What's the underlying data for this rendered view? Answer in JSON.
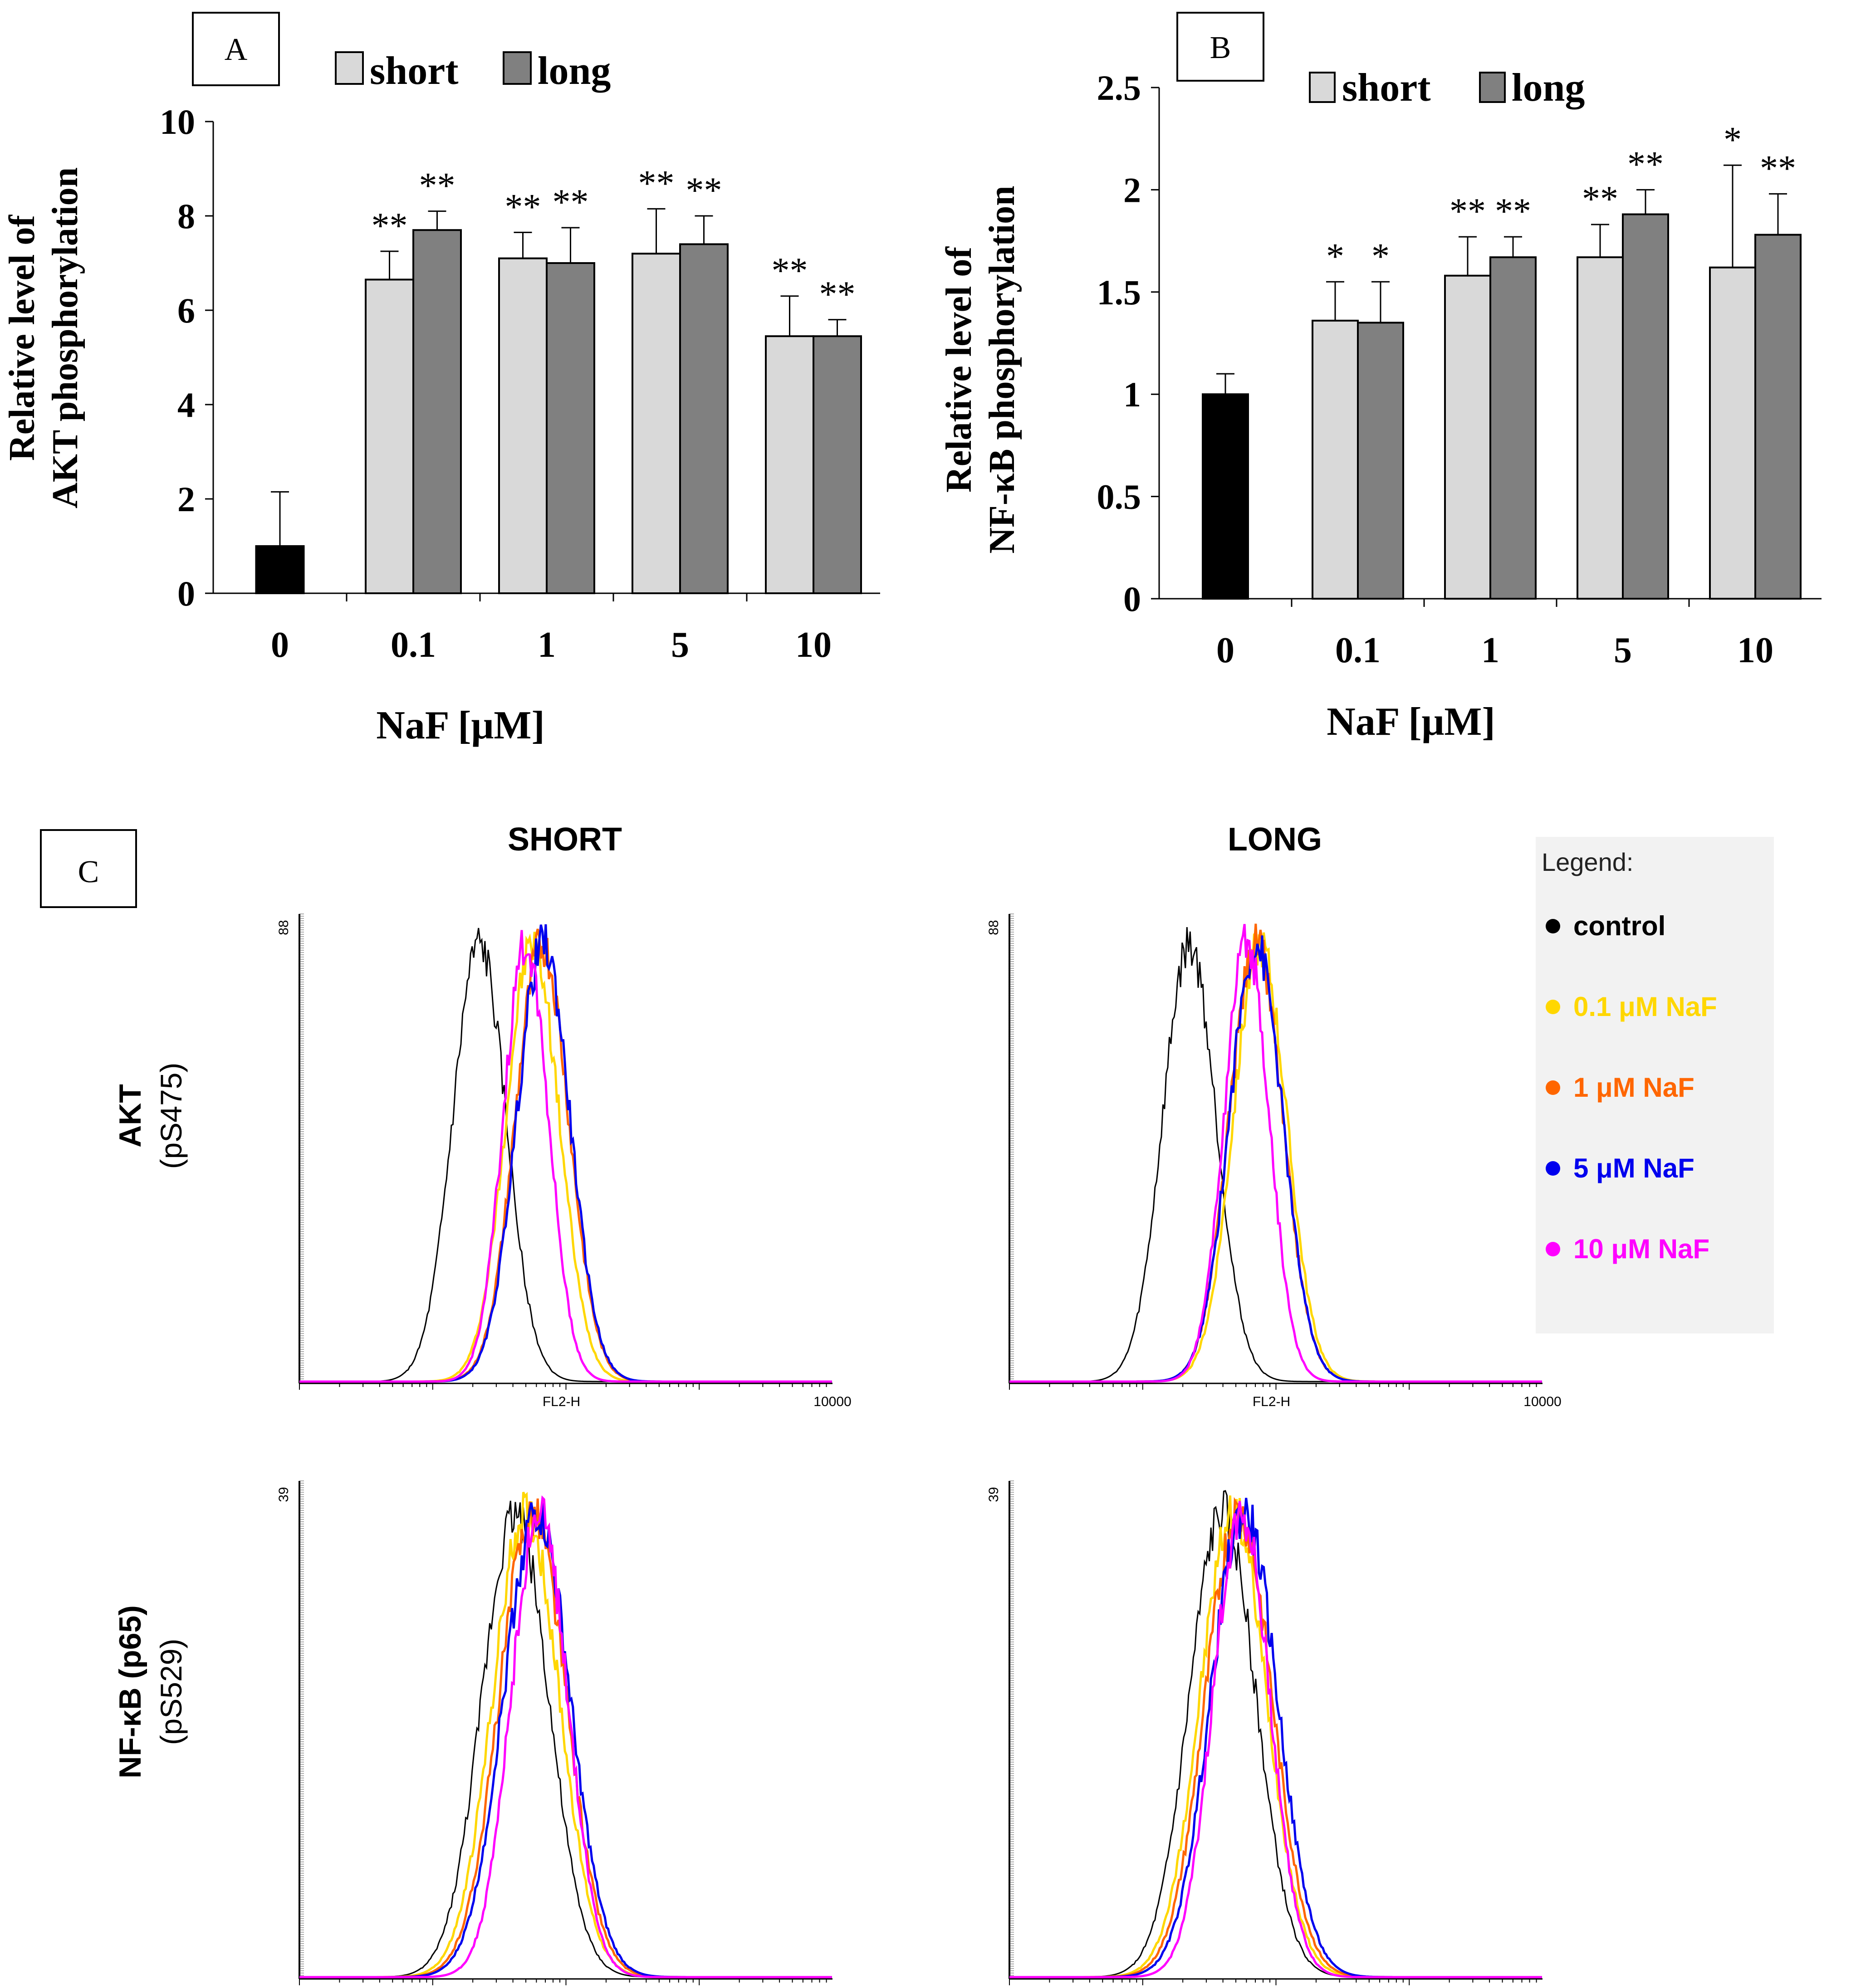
{
  "figure": {
    "panel_labels": {
      "a": "A",
      "b": "B",
      "c": "C"
    }
  },
  "chart_data": [
    {
      "id": "A",
      "type": "bar",
      "categories": [
        "0",
        "0.1",
        "1",
        "5",
        "10"
      ],
      "series": [
        {
          "name": "control",
          "values": [
            1.0,
            null,
            null,
            null,
            null
          ],
          "errors": [
            1.15,
            null,
            null,
            null,
            null
          ],
          "color": "#000000"
        },
        {
          "name": "short",
          "values": [
            null,
            6.65,
            7.1,
            7.2,
            5.45
          ],
          "errors": [
            null,
            0.6,
            0.55,
            0.95,
            0.85
          ],
          "sig": [
            "",
            "**",
            "**",
            "**",
            "**"
          ],
          "color": "#d9d9d9"
        },
        {
          "name": "long",
          "values": [
            null,
            7.7,
            7.0,
            7.4,
            5.45
          ],
          "errors": [
            null,
            0.4,
            0.75,
            0.6,
            0.35
          ],
          "sig": [
            "",
            "**",
            "**",
            "**",
            "**"
          ],
          "color": "#808080"
        }
      ],
      "legend": [
        "short",
        "long"
      ],
      "xlabel": "NaF [μM]",
      "ylabel_line1": "Relative level of",
      "ylabel_line2": "AKT phosphorylation",
      "ylim": [
        0,
        10
      ],
      "yticks": [
        "0",
        "2",
        "4",
        "6",
        "8",
        "10"
      ]
    },
    {
      "id": "B",
      "type": "bar",
      "categories": [
        "0",
        "0.1",
        "1",
        "5",
        "10"
      ],
      "series": [
        {
          "name": "control",
          "values": [
            1.0,
            null,
            null,
            null,
            null
          ],
          "errors": [
            0.1,
            null,
            null,
            null,
            null
          ],
          "color": "#000000"
        },
        {
          "name": "short",
          "values": [
            null,
            1.36,
            1.58,
            1.67,
            1.62
          ],
          "errors": [
            null,
            0.19,
            0.19,
            0.16,
            0.5
          ],
          "sig": [
            "",
            "*",
            "**",
            "**",
            "*"
          ],
          "color": "#d9d9d9"
        },
        {
          "name": "long",
          "values": [
            null,
            1.35,
            1.67,
            1.88,
            1.78
          ],
          "errors": [
            null,
            0.2,
            0.1,
            0.12,
            0.2
          ],
          "sig": [
            "",
            "*",
            "**",
            "**",
            "**"
          ],
          "color": "#808080"
        }
      ],
      "legend": [
        "short",
        "long"
      ],
      "xlabel": "NaF [μM]",
      "ylabel_line1": "Relative level of",
      "ylabel_line2": "NF-κB  phosphorylation",
      "ylim": [
        0,
        2.5
      ],
      "yticks": [
        "0",
        "0.5",
        "1",
        "1.5",
        "2",
        "2.5"
      ]
    },
    {
      "id": "C",
      "type": "line",
      "title_columns": [
        "SHORT",
        "LONG"
      ],
      "row_labels": [
        {
          "line1": "AKT",
          "line2": "(pS475)"
        },
        {
          "line1": "NF-κB (p65)",
          "line2": "(pS529)"
        }
      ],
      "xlabel": "FL2-H",
      "xmax_label": "10000",
      "x_scale": "log, 1 to 10000",
      "ymax_labels": [
        "88",
        "39"
      ],
      "legend_title": "Legend:",
      "series": [
        {
          "name": "control",
          "color": "#000000"
        },
        {
          "name": "0.1 μM NaF",
          "color": "#ffd700"
        },
        {
          "name": "1 μM NaF",
          "color": "#ff6600"
        },
        {
          "name": "5 μM NaF",
          "color": "#0000ee"
        },
        {
          "name": "10 μM NaF",
          "color": "#ff00ff"
        }
      ],
      "peaks_log10": {
        "akt_short": [
          1.35,
          1.75,
          1.82,
          1.83,
          1.7
        ],
        "akt_long": [
          1.35,
          1.88,
          1.85,
          1.85,
          1.78
        ],
        "nfkb_short": [
          1.62,
          1.7,
          1.75,
          1.78,
          1.8
        ],
        "nfkb_long": [
          1.6,
          1.68,
          1.72,
          1.76,
          1.74
        ]
      }
    }
  ]
}
